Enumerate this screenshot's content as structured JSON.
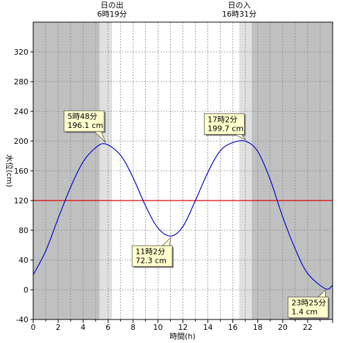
{
  "chart_data": {
    "type": "line",
    "title": "",
    "xlabel": "時間(h)",
    "ylabel": "水位(cm)",
    "xlim": [
      0,
      24
    ],
    "ylim": [
      -40,
      360
    ],
    "xticks": [
      0,
      2,
      4,
      6,
      8,
      10,
      12,
      14,
      16,
      18,
      20,
      22
    ],
    "yticks": [
      -40,
      0,
      40,
      80,
      120,
      160,
      200,
      240,
      280,
      320
    ],
    "grid": true,
    "reference_line": {
      "y": 120,
      "color": "#dd0000"
    },
    "sunrise": {
      "label": "日の出",
      "time_label": "6時19分",
      "hour": 6.317
    },
    "sunset": {
      "label": "日の入",
      "time_label": "16時31分",
      "hour": 16.517
    },
    "series": [
      {
        "color": "#0000cc",
        "extrema": [
          {
            "hour": 5.8,
            "label": "5時48分",
            "value_label": "196.1 cm",
            "value": 196.1
          },
          {
            "hour": 11.033,
            "label": "11時2分",
            "value_label": "72.3 cm",
            "value": 72.3
          },
          {
            "hour": 17.033,
            "label": "17時2分",
            "value_label": "199.7 cm",
            "value": 199.7
          },
          {
            "hour": 23.417,
            "label": "23時25分",
            "value_label": "1.4 cm",
            "value": 1.4
          }
        ],
        "x": [
          0,
          1,
          2,
          3,
          4,
          5,
          5.8,
          7,
          8,
          9,
          10,
          11.033,
          12,
          13,
          14,
          15,
          16,
          17.033,
          18,
          19,
          20,
          21,
          22,
          23.417,
          24
        ],
        "y": [
          20,
          52,
          96,
          138,
          172,
          191,
          196.1,
          181,
          151,
          113,
          83,
          72.3,
          85,
          120,
          158,
          187,
          198,
          199.7,
          186,
          148,
          98,
          55,
          22,
          1.4,
          6
        ]
      }
    ],
    "annotations": [
      {
        "x": 5.8,
        "y": 196.1
      },
      {
        "x": 11.033,
        "y": 72.3
      },
      {
        "x": 17.033,
        "y": 199.7
      },
      {
        "x": 23.417,
        "y": 1.4
      }
    ]
  }
}
